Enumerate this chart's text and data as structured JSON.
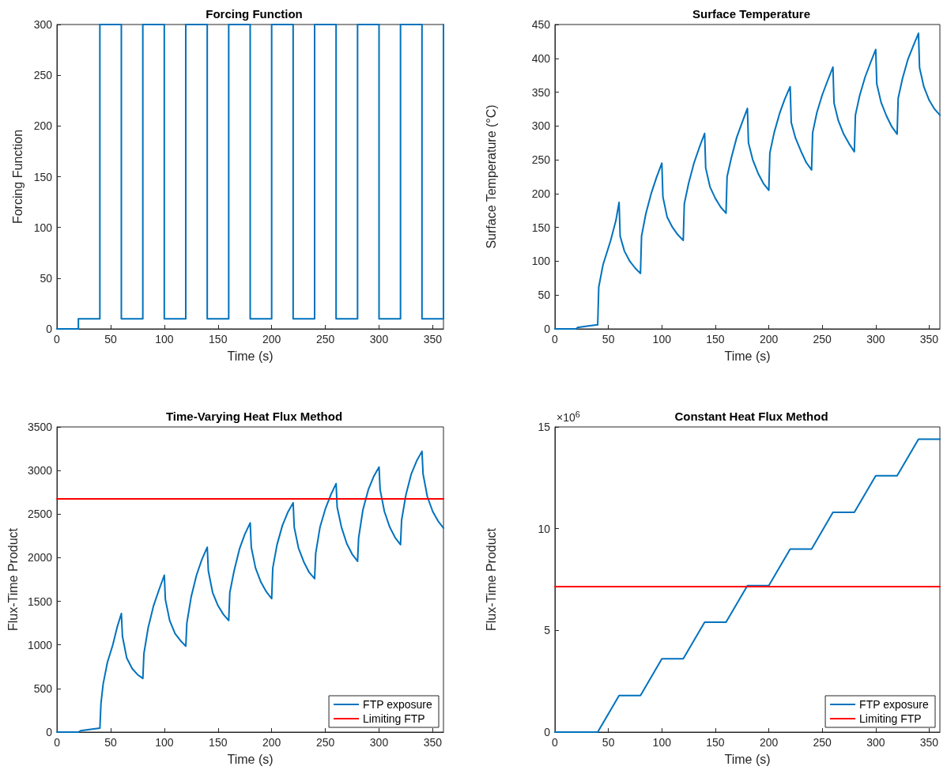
{
  "chart_data": [
    {
      "type": "step",
      "title": "Forcing Function",
      "xlabel": "Time (s)",
      "ylabel": "Forcing Function",
      "xlim": [
        0,
        360
      ],
      "xticks": [
        0,
        50,
        100,
        150,
        200,
        250,
        300,
        350
      ],
      "ylim": [
        0,
        300
      ],
      "yticks": [
        0,
        50,
        100,
        150,
        200,
        250,
        300
      ],
      "grid": false,
      "legend": false,
      "marker": "none",
      "series": [
        {
          "color": "#0072bd",
          "x": [
            0,
            20,
            40,
            60,
            80,
            100,
            120,
            140,
            160,
            180,
            200,
            220,
            240,
            260,
            280,
            300,
            320,
            340,
            360
          ],
          "values": [
            0,
            10,
            300,
            10,
            300,
            10,
            300,
            10,
            300,
            10,
            300,
            10,
            300,
            10,
            300,
            10,
            300,
            10,
            300
          ]
        }
      ]
    },
    {
      "type": "line",
      "title": "Surface Temperature",
      "xlabel": "Time (s)",
      "ylabel": "Surface Temperature (°C)",
      "xlim": [
        0,
        360
      ],
      "xticks": [
        0,
        50,
        100,
        150,
        200,
        250,
        300,
        350
      ],
      "ylim": [
        0,
        450
      ],
      "yticks": [
        0,
        50,
        100,
        150,
        200,
        250,
        300,
        350,
        400,
        450
      ],
      "grid": false,
      "legend": false,
      "marker": "none",
      "series": [
        {
          "color": "#0072bd",
          "x": [
            0,
            20,
            21,
            30,
            40,
            41,
            45,
            52,
            57,
            60,
            61,
            65,
            70,
            75,
            80,
            81,
            85,
            90,
            95,
            100,
            101,
            105,
            110,
            115,
            120,
            121,
            125,
            130,
            135,
            140,
            141,
            145,
            150,
            155,
            160,
            161,
            165,
            170,
            175,
            180,
            181,
            185,
            190,
            195,
            200,
            201,
            205,
            210,
            215,
            220,
            221,
            225,
            230,
            235,
            240,
            241,
            245,
            250,
            255,
            260,
            261,
            265,
            270,
            275,
            280,
            281,
            285,
            290,
            295,
            300,
            301,
            305,
            310,
            315,
            320,
            321,
            325,
            330,
            335,
            340,
            341,
            345,
            350,
            355,
            360
          ],
          "values": [
            0,
            0,
            2,
            4,
            6,
            62,
            95,
            130,
            160,
            187,
            137,
            115,
            100,
            90,
            82,
            137,
            170,
            200,
            224,
            245,
            195,
            165,
            150,
            139,
            131,
            185,
            215,
            245,
            268,
            289,
            238,
            210,
            193,
            180,
            171,
            225,
            253,
            283,
            305,
            326,
            275,
            250,
            230,
            215,
            205,
            260,
            290,
            318,
            340,
            358,
            305,
            282,
            263,
            246,
            235,
            290,
            320,
            346,
            367,
            387,
            334,
            308,
            288,
            274,
            262,
            316,
            345,
            372,
            393,
            413,
            362,
            335,
            315,
            299,
            288,
            341,
            370,
            398,
            418,
            437,
            386,
            358,
            338,
            325,
            316
          ]
        }
      ]
    },
    {
      "type": "line",
      "title": "Time-Varying Heat Flux Method",
      "xlabel": "Time (s)",
      "ylabel": "Flux-Time Product",
      "xlim": [
        0,
        360
      ],
      "xticks": [
        0,
        50,
        100,
        150,
        200,
        250,
        300,
        350
      ],
      "ylim": [
        0,
        3500
      ],
      "yticks": [
        0,
        500,
        1000,
        1500,
        2000,
        2500,
        3000,
        3500
      ],
      "grid": false,
      "legend": "bottom right",
      "marker": "none",
      "series": [
        {
          "name": "FTP exposure",
          "color": "#0072bd",
          "x": [
            0,
            20,
            22,
            30,
            40,
            41,
            43,
            47,
            52,
            56,
            60,
            61,
            65,
            70,
            75,
            80,
            81,
            85,
            90,
            95,
            100,
            101,
            105,
            110,
            115,
            120,
            121,
            125,
            130,
            135,
            140,
            141,
            145,
            150,
            155,
            160,
            161,
            165,
            170,
            175,
            180,
            181,
            185,
            190,
            195,
            200,
            201,
            205,
            210,
            215,
            220,
            221,
            225,
            230,
            235,
            240,
            241,
            245,
            250,
            255,
            260,
            261,
            265,
            270,
            275,
            280,
            281,
            285,
            290,
            295,
            300,
            301,
            305,
            310,
            315,
            320,
            321,
            325,
            330,
            335,
            340,
            341,
            345,
            350,
            355,
            360
          ],
          "values": [
            0,
            0,
            15,
            30,
            45,
            330,
            550,
            800,
            1000,
            1200,
            1360,
            1100,
            850,
            730,
            660,
            615,
            900,
            1200,
            1450,
            1630,
            1800,
            1520,
            1280,
            1130,
            1050,
            985,
            1250,
            1550,
            1800,
            1980,
            2120,
            1850,
            1600,
            1450,
            1350,
            1280,
            1600,
            1850,
            2100,
            2270,
            2400,
            2120,
            1880,
            1720,
            1610,
            1530,
            1880,
            2150,
            2370,
            2520,
            2630,
            2350,
            2110,
            1950,
            1830,
            1760,
            2050,
            2350,
            2560,
            2720,
            2850,
            2580,
            2350,
            2160,
            2040,
            1960,
            2230,
            2550,
            2780,
            2930,
            3040,
            2780,
            2530,
            2350,
            2230,
            2150,
            2430,
            2720,
            2960,
            3110,
            3220,
            2960,
            2700,
            2530,
            2420,
            2340
          ]
        },
        {
          "name": "Limiting FTP",
          "color": "#ff0000",
          "x": [
            0,
            360
          ],
          "values": [
            2675,
            2675
          ]
        }
      ]
    },
    {
      "type": "line",
      "title": "Constant Heat Flux Method",
      "xlabel": "Time (s)",
      "ylabel": "Flux-Time Product",
      "annotations": [
        "×10$^{6}$"
      ],
      "xlim": [
        0,
        360
      ],
      "xticks": [
        0,
        50,
        100,
        150,
        200,
        250,
        300,
        350
      ],
      "ylim": [
        0,
        15
      ],
      "yticks": [
        0,
        5,
        10,
        15
      ],
      "grid": false,
      "legend": "bottom right",
      "marker": "none",
      "series": [
        {
          "name": "FTP exposure",
          "color": "#0072bd",
          "x": [
            0,
            40,
            60,
            80,
            100,
            120,
            140,
            160,
            180,
            200,
            220,
            240,
            260,
            280,
            300,
            320,
            340,
            360
          ],
          "values": [
            0,
            0,
            1.8,
            1.8,
            3.6,
            3.6,
            5.4,
            5.4,
            7.2,
            7.2,
            9.0,
            9.0,
            10.8,
            10.8,
            12.6,
            12.6,
            14.4,
            14.4
          ]
        },
        {
          "name": "Limiting FTP",
          "color": "#ff0000",
          "x": [
            0,
            360
          ],
          "values": [
            7.15,
            7.15
          ]
        }
      ]
    }
  ]
}
